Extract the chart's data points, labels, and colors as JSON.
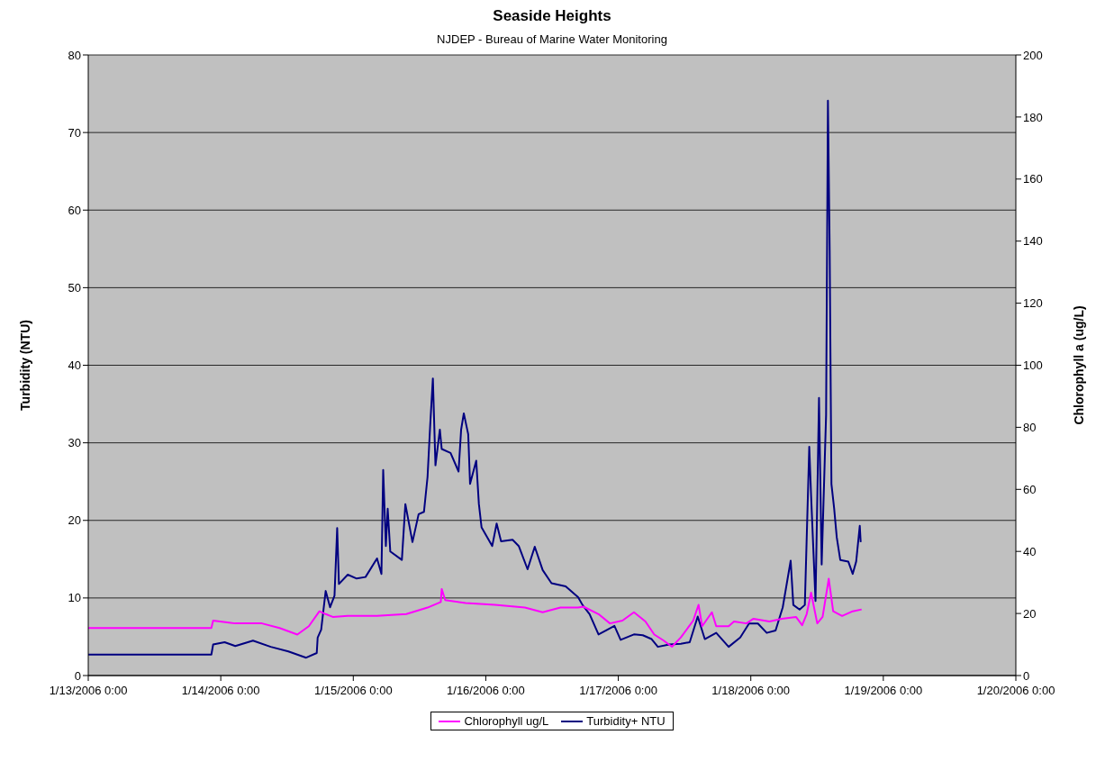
{
  "chart_data": {
    "type": "line",
    "title": "Seaside Heights",
    "subtitle": "NJDEP - Bureau of Marine Water Monitoring",
    "ylabel": "Turbidity (NTU)",
    "y2label": "Chlorophyll a (ug/L)",
    "xlim": [
      "2006-01-13T00:00",
      "2006-01-20T00:00"
    ],
    "xticks": [
      {
        "value": "2006-01-13T00:00",
        "label": "1/13/2006 0:00"
      },
      {
        "value": "2006-01-14T00:00",
        "label": "1/14/2006 0:00"
      },
      {
        "value": "2006-01-15T00:00",
        "label": "1/15/2006 0:00"
      },
      {
        "value": "2006-01-16T00:00",
        "label": "1/16/2006 0:00"
      },
      {
        "value": "2006-01-17T00:00",
        "label": "1/17/2006 0:00"
      },
      {
        "value": "2006-01-18T00:00",
        "label": "1/18/2006 0:00"
      },
      {
        "value": "2006-01-19T00:00",
        "label": "1/19/2006 0:00"
      },
      {
        "value": "2006-01-20T00:00",
        "label": "1/20/2006 0:00"
      }
    ],
    "ylim": [
      0,
      80
    ],
    "yticks": [
      0,
      10,
      20,
      30,
      40,
      50,
      60,
      70,
      80
    ],
    "y2lim": [
      0,
      200
    ],
    "y2ticks": [
      0,
      20,
      40,
      60,
      80,
      100,
      120,
      140,
      160,
      180,
      200
    ],
    "grid": "y",
    "legend": "bottom",
    "marker": "none",
    "line_style": "solid",
    "series": [
      {
        "name": "Turbidity+ NTU",
        "color": "#000080",
        "x": [
          "2006-01-13T00:00",
          "2006-01-13T22:18",
          "2006-01-13T22:37",
          "2006-01-14T00:42",
          "2006-01-14T02:38",
          "2006-01-14T05:50",
          "2006-01-14T09:03",
          "2006-01-14T12:15",
          "2006-01-14T15:28",
          "2006-01-14T17:23",
          "2006-01-14T17:33",
          "2006-01-14T18:11",
          "2006-01-14T19:00",
          "2006-01-14T19:48",
          "2006-01-14T20:36",
          "2006-01-14T21:05",
          "2006-01-14T21:24",
          "2006-01-14T23:00",
          "2006-01-15T00:37",
          "2006-01-15T02:13",
          "2006-01-15T04:18",
          "2006-01-15T05:06",
          "2006-01-15T05:25",
          "2006-01-15T05:54",
          "2006-01-15T06:14",
          "2006-01-15T06:42",
          "2006-01-15T08:48",
          "2006-01-15T09:26",
          "2006-01-15T10:43",
          "2006-01-15T11:50",
          "2006-01-15T12:48",
          "2006-01-15T13:27",
          "2006-01-15T13:56",
          "2006-01-15T14:25",
          "2006-01-15T14:53",
          "2006-01-15T15:41",
          "2006-01-15T16:01",
          "2006-01-15T17:37",
          "2006-01-15T19:04",
          "2006-01-15T19:32",
          "2006-01-15T20:01",
          "2006-01-15T20:49",
          "2006-01-15T21:09",
          "2006-01-15T22:16",
          "2006-01-15T22:45",
          "2006-01-15T23:14",
          "2006-01-16T01:10",
          "2006-01-16T01:58",
          "2006-01-16T02:46",
          "2006-01-16T04:51",
          "2006-01-16T05:58",
          "2006-01-16T07:34",
          "2006-01-16T08:52",
          "2006-01-16T10:18",
          "2006-01-16T11:54",
          "2006-01-16T14:28",
          "2006-01-16T16:43",
          "2006-01-16T17:31",
          "2006-01-16T18:48",
          "2006-01-16T20:25",
          "2006-01-16T22:01",
          "2006-01-16T23:18",
          "2006-01-17T00:25",
          "2006-01-17T02:50",
          "2006-01-17T04:26",
          "2006-01-17T06:02",
          "2006-01-17T07:10",
          "2006-01-17T09:14",
          "2006-01-17T11:20",
          "2006-01-17T12:56",
          "2006-01-17T14:23",
          "2006-01-17T15:40",
          "2006-01-17T17:44",
          "2006-01-17T19:59",
          "2006-01-17T22:05",
          "2006-01-17T23:41",
          "2006-01-18T01:17",
          "2006-01-18T02:53",
          "2006-01-18T04:29",
          "2006-01-18T05:47",
          "2006-01-18T07:13",
          "2006-01-18T07:42",
          "2006-01-18T08:50",
          "2006-01-18T09:47",
          "2006-01-18T10:35",
          "2006-01-18T10:55",
          "2006-01-18T11:43",
          "2006-01-18T12:21",
          "2006-01-18T12:50",
          "2006-01-18T13:38",
          "2006-01-18T13:58",
          "2006-01-18T14:17",
          "2006-01-18T14:36",
          "2006-01-18T15:05",
          "2006-01-18T15:34",
          "2006-01-18T16:12",
          "2006-01-18T17:39",
          "2006-01-18T18:27",
          "2006-01-18T19:05",
          "2006-01-18T19:44",
          "2006-01-18T19:54"
        ],
        "values": [
          2.7,
          2.7,
          4.0,
          4.3,
          3.8,
          4.5,
          3.7,
          3.1,
          2.3,
          2.9,
          4.9,
          5.9,
          10.9,
          8.8,
          10.3,
          19,
          11.8,
          13,
          12.5,
          12.7,
          15.1,
          13.1,
          26.5,
          16.7,
          21.5,
          16.0,
          14.9,
          22.1,
          17.2,
          20.8,
          21.1,
          25.6,
          32.3,
          38.3,
          27.1,
          31.7,
          29.2,
          28.7,
          26.3,
          31.7,
          33.8,
          31.1,
          24.7,
          27.7,
          22.1,
          19.1,
          16.7,
          19.6,
          17.3,
          17.5,
          16.7,
          13.7,
          16.6,
          13.6,
          11.9,
          11.5,
          10.1,
          9.1,
          7.9,
          5.3,
          5.9,
          6.4,
          4.6,
          5.3,
          5.2,
          4.7,
          3.7,
          4.0,
          4.1,
          4.3,
          7.6,
          4.7,
          5.5,
          3.7,
          4.9,
          6.7,
          6.7,
          5.5,
          5.8,
          8.8,
          14.8,
          9.1,
          8.5,
          9.1,
          29.5,
          23.2,
          9.6,
          35.8,
          14.3,
          33.6,
          74.1,
          54.8,
          24.7,
          21.6,
          17.8,
          14.9,
          14.7,
          13.1,
          14.7,
          19.3,
          17.2
        ]
      },
      {
        "name": "Chlorophyll ug/L",
        "color": "#ff00ff",
        "axis": "y2",
        "x": [
          "2006-01-13T00:00",
          "2006-01-13T22:18",
          "2006-01-13T22:37",
          "2006-01-14T02:38",
          "2006-01-14T07:27",
          "2006-01-14T10:39",
          "2006-01-14T13:52",
          "2006-01-14T15:57",
          "2006-01-14T17:52",
          "2006-01-14T19:00",
          "2006-01-14T20:17",
          "2006-01-14T23:00",
          "2006-01-15T04:18",
          "2006-01-15T09:36",
          "2006-01-15T13:27",
          "2006-01-15T15:51",
          "2006-01-15T16:01",
          "2006-01-15T16:39",
          "2006-01-15T20:21",
          "2006-01-16T01:39",
          "2006-01-16T07:05",
          "2006-01-16T10:18",
          "2006-01-16T13:31",
          "2006-01-16T16:43",
          "2006-01-16T17:41",
          "2006-01-16T20:25",
          "2006-01-16T22:29",
          "2006-01-17T00:45",
          "2006-01-17T02:50",
          "2006-01-17T04:55",
          "2006-01-17T06:31",
          "2006-01-17T08:07",
          "2006-01-17T09:43",
          "2006-01-17T11:20",
          "2006-01-17T13:34",
          "2006-01-17T14:32",
          "2006-01-17T15:11",
          "2006-01-17T16:57",
          "2006-01-17T17:44",
          "2006-01-17T19:59",
          "2006-01-17T20:57",
          "2006-01-17T23:12",
          "2006-01-18T00:29",
          "2006-01-18T03:22",
          "2006-01-18T05:37",
          "2006-01-18T08:11",
          "2006-01-18T09:18",
          "2006-01-18T10:07",
          "2006-01-18T10:55",
          "2006-01-18T12:02",
          "2006-01-18T13:00",
          "2006-01-18T14:07",
          "2006-01-18T14:55",
          "2006-01-18T16:32",
          "2006-01-18T18:27",
          "2006-01-18T20:04"
        ],
        "values": [
          15.3,
          15.3,
          17.7,
          16.8,
          16.8,
          15.3,
          13.2,
          15.9,
          20.7,
          19.8,
          18.9,
          19.2,
          19.2,
          19.8,
          21.9,
          23.7,
          27.9,
          24.3,
          23.4,
          22.8,
          21.9,
          20.4,
          21.9,
          21.9,
          22.2,
          19.8,
          16.8,
          17.7,
          20.4,
          17.4,
          13.2,
          11.4,
          9.3,
          12.3,
          17.7,
          22.8,
          15.9,
          20.4,
          15.9,
          15.9,
          17.4,
          16.8,
          18.3,
          17.4,
          18.3,
          18.9,
          16.2,
          19.8,
          26.7,
          16.8,
          18.9,
          31.2,
          20.7,
          19.2,
          20.7,
          21.3
        ]
      }
    ]
  }
}
